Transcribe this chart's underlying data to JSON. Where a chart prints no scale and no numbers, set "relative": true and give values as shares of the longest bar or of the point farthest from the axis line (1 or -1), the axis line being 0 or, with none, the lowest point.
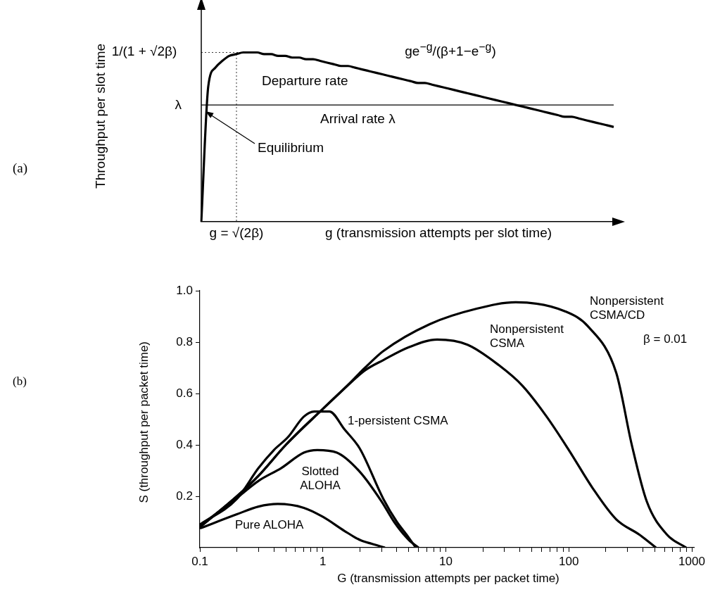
{
  "chart_data": [
    {
      "type": "line",
      "relative": true,
      "xlabel": "g (transmission attempts per slot time)",
      "ylabel": "Throughput per slot time",
      "categories": [
        null,
        null,
        null,
        null,
        null,
        null,
        null,
        null,
        null,
        null,
        null,
        null,
        null,
        null,
        null,
        null,
        null,
        null,
        null,
        null,
        null,
        null,
        null,
        null,
        null,
        null,
        null,
        null,
        null,
        null,
        null,
        null,
        null,
        null,
        null,
        null,
        null,
        null,
        null,
        null,
        null,
        null,
        null,
        null,
        null,
        null,
        null,
        null,
        null,
        null,
        null,
        null,
        null,
        null,
        null,
        null,
        null,
        null,
        null,
        null
      ],
      "series": [
        {
          "name": "Departure rate",
          "color": "#000000",
          "values": [
            0,
            0.8,
            0.91,
            0.95,
            0.98,
            0.99,
            1,
            1,
            1,
            0.99,
            0.99,
            0.98,
            0.98,
            0.97,
            0.97,
            0.96,
            0.96,
            0.95,
            0.94,
            0.93,
            0.92,
            0.92,
            0.91,
            0.9,
            0.89,
            0.88,
            0.87,
            0.86,
            0.85,
            0.84,
            0.83,
            0.82,
            0.82,
            0.81,
            0.8,
            0.79,
            0.78,
            0.77,
            0.76,
            0.75,
            0.74,
            0.73,
            0.72,
            0.71,
            0.7,
            0.69,
            0.68,
            0.67,
            0.66,
            0.65,
            0.64,
            0.63,
            0.62,
            0.62,
            0.61,
            0.6,
            0.59,
            0.58,
            0.57,
            0.56
          ]
        }
      ],
      "ref_lines": [
        {
          "axis": "y",
          "value": 1,
          "line_style": "dotted"
        },
        {
          "axis": "y",
          "value": 0.69,
          "label": "Arrival rate λ"
        }
      ],
      "annotations": [
        "(a)",
        "λ",
        "1/(1 + √2β)",
        "ge$^{−g}$/(β+1−e$^{−g}$)",
        "Equilibrium",
        "g = √(2β)"
      ],
      "grid": false,
      "legend": false,
      "marker": "none",
      "line_style": "solid"
    },
    {
      "type": "line",
      "xlabel": "G (transmission attempts per packet time)",
      "ylabel": "S (throughput per packet time)",
      "log": "x",
      "xlim": [
        0.1,
        1050
      ],
      "xticks": [
        0.1,
        {
          "value": 0.2,
          "label": null
        },
        {
          "value": 0.3,
          "label": null
        },
        {
          "value": 0.4,
          "label": null
        },
        {
          "value": 0.5,
          "label": null
        },
        {
          "value": 0.6,
          "label": null
        },
        {
          "value": 0.7,
          "label": null
        },
        {
          "value": 0.8,
          "label": null
        },
        {
          "value": 0.9,
          "label": null
        },
        1,
        {
          "value": 2,
          "label": null
        },
        {
          "value": 3,
          "label": null
        },
        {
          "value": 4,
          "label": null
        },
        {
          "value": 5,
          "label": null
        },
        {
          "value": 6,
          "label": null
        },
        {
          "value": 7,
          "label": null
        },
        {
          "value": 8,
          "label": null
        },
        {
          "value": 9,
          "label": null
        },
        10,
        {
          "value": 20,
          "label": null
        },
        {
          "value": 30,
          "label": null
        },
        {
          "value": 40,
          "label": null
        },
        {
          "value": 50,
          "label": null
        },
        {
          "value": 60,
          "label": null
        },
        {
          "value": 70,
          "label": null
        },
        {
          "value": 80,
          "label": null
        },
        {
          "value": 90,
          "label": null
        },
        100,
        {
          "value": 200,
          "label": null
        },
        {
          "value": 300,
          "label": null
        },
        {
          "value": 400,
          "label": null
        },
        {
          "value": 500,
          "label": null
        },
        {
          "value": 600,
          "label": null
        },
        {
          "value": 700,
          "label": null
        },
        {
          "value": 800,
          "label": null
        },
        {
          "value": 900,
          "label": null
        },
        1000
      ],
      "ylim": [
        0,
        1
      ],
      "yticks": [
        0.2,
        0.4,
        0.6,
        0.8,
        {
          "value": 1,
          "label": "1.0"
        }
      ],
      "series": [
        {
          "name": "Pure ALOHA",
          "color": "#000000",
          "x": [
            0.1,
            0.2,
            0.3,
            0.43,
            0.7,
            1,
            1.5,
            2,
            2.5,
            3.2
          ],
          "values": [
            0.075,
            0.13,
            0.16,
            0.17,
            0.155,
            0.12,
            0.065,
            0.03,
            0.015,
            0
          ]
        },
        {
          "name": "Slotted ALOHA",
          "color": "#000000",
          "x": [
            0.1,
            0.19,
            0.3,
            0.46,
            0.7,
            0.9,
            1.3,
            2,
            3,
            3.8,
            5,
            6
          ],
          "values": [
            0.085,
            0.185,
            0.26,
            0.31,
            0.37,
            0.38,
            0.37,
            0.295,
            0.18,
            0.1,
            0.03,
            0
          ]
        },
        {
          "name": "1-persistent CSMA",
          "color": "#000000",
          "x": [
            0.1,
            0.2,
            0.3,
            0.4,
            0.52,
            0.7,
            0.85,
            1.13,
            1.5,
            2,
            3.1,
            4,
            4.8,
            5.7
          ],
          "values": [
            0.09,
            0.19,
            0.31,
            0.38,
            0.43,
            0.51,
            0.53,
            0.53,
            0.46,
            0.385,
            0.19,
            0.1,
            0.05,
            0
          ]
        },
        {
          "name": "Nonpersistent CSMA",
          "color": "#000000",
          "x": [
            0.1,
            0.2,
            0.3,
            0.5,
            1,
            1.5,
            2.2,
            3.1,
            5,
            8.5,
            15,
            27,
            42,
            66,
            100,
            157,
            243,
            376,
            511
          ],
          "values": [
            0.08,
            0.2,
            0.28,
            0.4,
            0.54,
            0.62,
            0.69,
            0.73,
            0.78,
            0.81,
            0.79,
            0.71,
            0.63,
            0.51,
            0.38,
            0.23,
            0.11,
            0.05,
            0
          ]
        },
        {
          "name": "Nonpersistent CSMA/CD",
          "color": "#000000",
          "x": [
            0.1,
            0.2,
            0.3,
            0.5,
            1,
            1.5,
            2.2,
            3.1,
            7.4,
            17.8,
            37,
            93,
            144,
            243,
            325,
            430,
            630,
            900
          ],
          "values": [
            0.08,
            0.2,
            0.28,
            0.4,
            0.54,
            0.62,
            0.7,
            0.765,
            0.87,
            0.93,
            0.955,
            0.92,
            0.86,
            0.68,
            0.4,
            0.18,
            0.05,
            0
          ]
        }
      ],
      "annotations": [
        "(b)",
        "β = 0.01"
      ],
      "grid": false,
      "legend": false,
      "marker": "none",
      "line_style": "solid"
    }
  ]
}
